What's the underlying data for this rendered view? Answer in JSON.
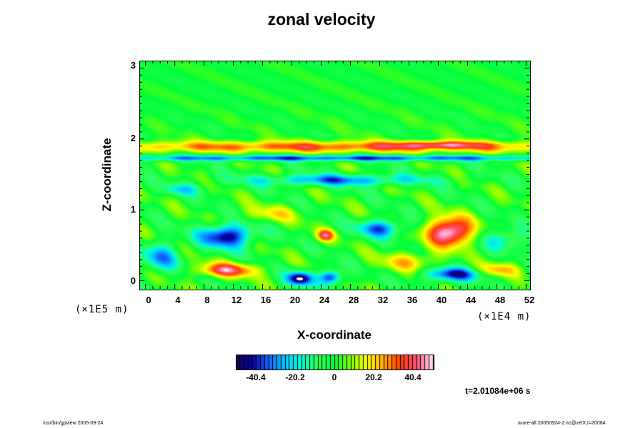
{
  "chart_data": {
    "type": "heatmap",
    "title": "zonal velocity",
    "xlabel": "X-coordinate",
    "ylabel": "Z-coordinate",
    "x_scale_note": "(×1E4 m)",
    "y_scale_note": "(×1E5 m)",
    "x_ticks": [
      "0",
      "4",
      "8",
      "12",
      "16",
      "20",
      "24",
      "28",
      "32",
      "36",
      "40",
      "44",
      "48",
      "52"
    ],
    "y_ticks": [
      "3",
      "2",
      "1",
      "0"
    ],
    "xlim": [
      -0.8,
      52.5
    ],
    "ylim": [
      -0.12,
      3.1
    ],
    "colorbar": {
      "ticks": [
        "-40.4",
        "-20.2",
        "0",
        "20.2",
        "40.4"
      ],
      "range": [
        -50,
        50
      ]
    },
    "colormap": [
      "#1a0050",
      "#0000a0",
      "#1464ff",
      "#00c8ff",
      "#00ffd2",
      "#32ff50",
      "#00ff3c",
      "#82ff00",
      "#ffff00",
      "#ffaa00",
      "#ff3c00",
      "#ff4f7c",
      "#ffe6f0"
    ],
    "features": [
      {
        "x": 26,
        "z": 1.9,
        "sx": 40,
        "sz": 0.08,
        "amp": 32
      },
      {
        "x": 40,
        "z": 1.93,
        "sx": 6,
        "sz": 0.05,
        "amp": 22
      },
      {
        "x": 26,
        "z": 1.74,
        "sx": 40,
        "sz": 0.04,
        "amp": -36
      },
      {
        "x": 26,
        "z": 1.43,
        "sx": 12,
        "sz": 0.08,
        "amp": -30
      },
      {
        "x": 32,
        "z": 0.75,
        "sx": 3,
        "sz": 0.12,
        "amp": -34
      },
      {
        "x": 11,
        "z": 0.64,
        "sx": 3.5,
        "sz": 0.16,
        "amp": -46
      },
      {
        "x": 41.5,
        "z": 0.7,
        "sx": 3,
        "sz": 0.2,
        "amp": 56
      },
      {
        "x": 11,
        "z": 0.16,
        "sx": 4,
        "sz": 0.1,
        "amp": 38
      },
      {
        "x": 21,
        "z": 0.04,
        "sx": 1.8,
        "sz": 0.1,
        "amp": -48
      },
      {
        "x": 25.2,
        "z": 0.06,
        "sx": 1.5,
        "sz": 0.1,
        "amp": -42
      },
      {
        "x": 24.5,
        "z": 0.65,
        "sx": 1.2,
        "sz": 0.08,
        "amp": 35
      },
      {
        "x": 42,
        "z": 0.1,
        "sx": 4,
        "sz": 0.1,
        "amp": -40
      },
      {
        "x": 48,
        "z": 0.16,
        "sx": 3,
        "sz": 0.1,
        "amp": 24
      },
      {
        "x": 36,
        "z": 0.28,
        "sx": 4,
        "sz": 0.14,
        "amp": 20
      },
      {
        "x": 2,
        "z": 0.35,
        "sx": 2.5,
        "sz": 0.2,
        "amp": -26
      },
      {
        "x": 49,
        "z": 0.6,
        "sx": 3,
        "sz": 0.15,
        "amp": -20
      },
      {
        "x": 17,
        "z": 0.95,
        "sx": 4,
        "sz": 0.12,
        "amp": 15
      },
      {
        "x": 5,
        "z": 1.3,
        "sx": 3,
        "sz": 0.08,
        "amp": -18
      }
    ],
    "time_label": "t=2.01084e+06 s",
    "footer_left": "/usr/bin/gpview 2005-09-24",
    "footer_right": "arare-all 20050924-2.nc@velX,t=20084"
  }
}
